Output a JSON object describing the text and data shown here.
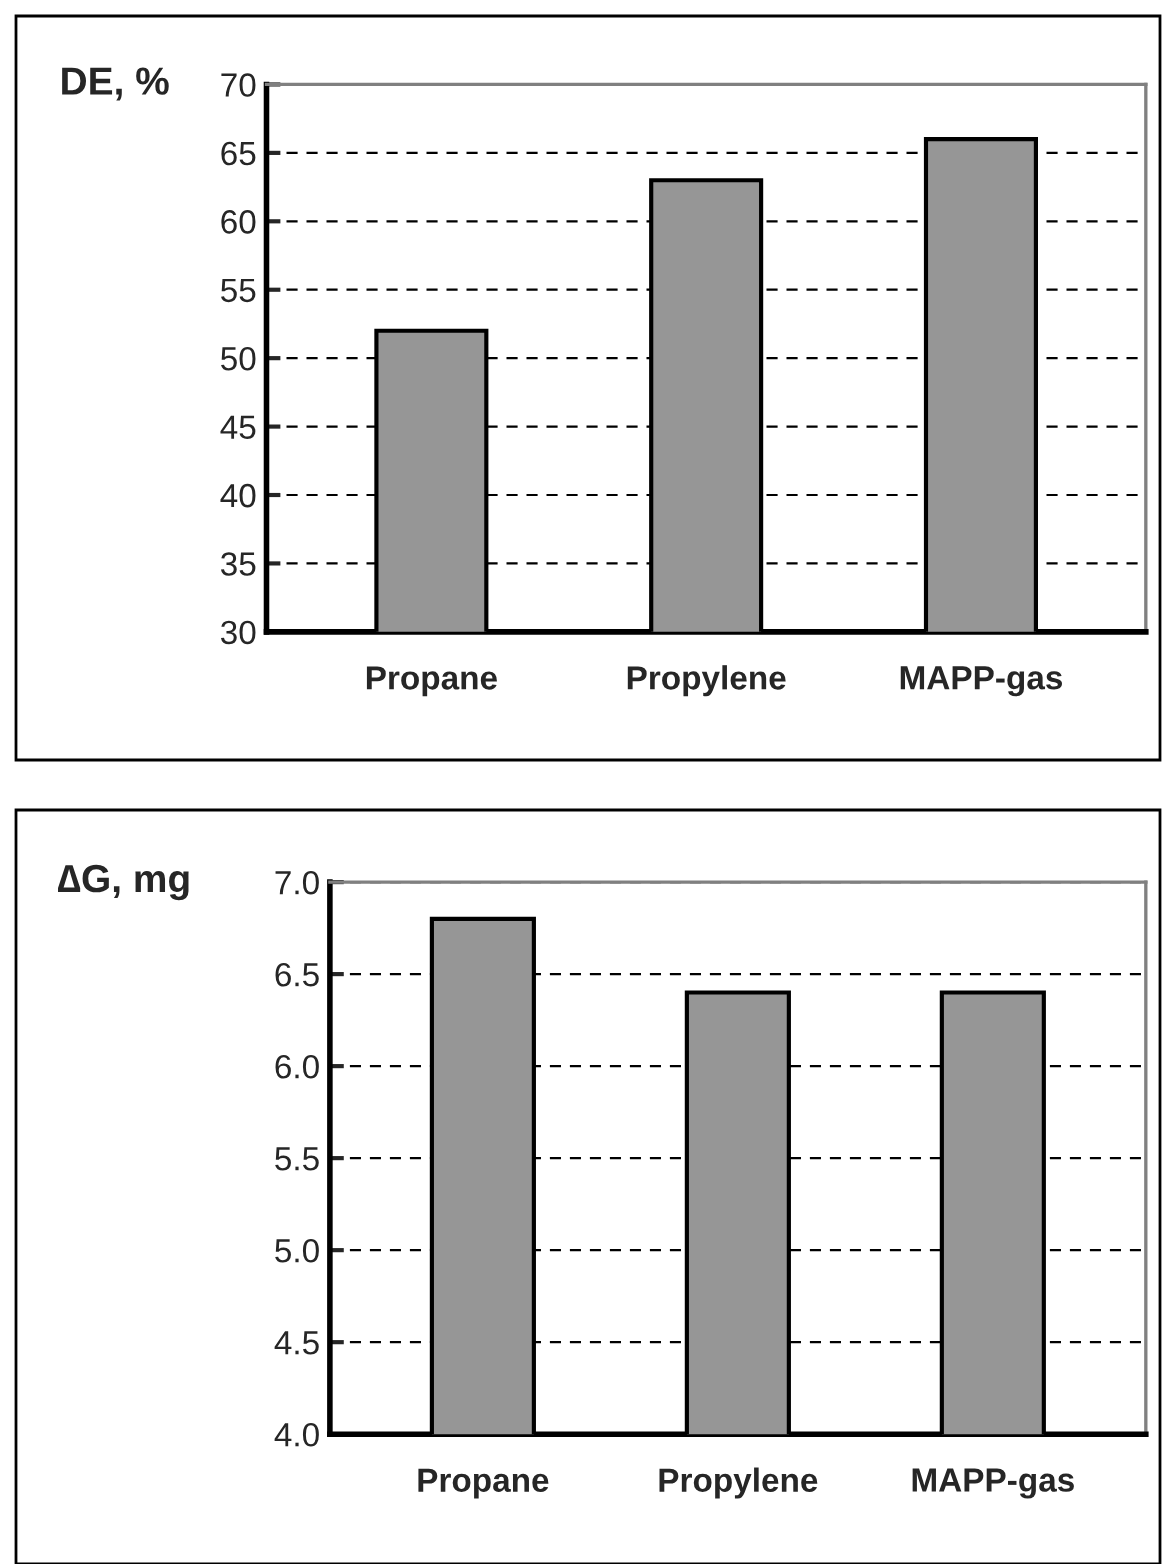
{
  "chart_data": [
    {
      "type": "bar",
      "ylabel": "DE, %",
      "categories": [
        "Propane",
        "Propylene",
        "MAPP-gas"
      ],
      "values": [
        52,
        63,
        66
      ],
      "color": "#969696",
      "ylim": [
        30,
        70
      ],
      "yticks": [
        30,
        35,
        40,
        45,
        50,
        55,
        60,
        65,
        70
      ],
      "grid": "y"
    },
    {
      "type": "bar",
      "ylabel": "∆G, mg",
      "categories": [
        "Propane",
        "Propylene",
        "MAPP-gas"
      ],
      "values": [
        6.8,
        6.4,
        6.4
      ],
      "color": "#969696",
      "ylim": [
        4,
        7
      ],
      "yticks": [
        {
          "value": 4,
          "label": "4.0"
        },
        {
          "value": 4.5,
          "label": "4.5"
        },
        {
          "value": 5,
          "label": "5.0"
        },
        {
          "value": 5.5,
          "label": "5.5"
        },
        {
          "value": 6,
          "label": "6.0"
        },
        {
          "value": 6.5,
          "label": "6.5"
        },
        {
          "value": 7,
          "label": "7.0"
        }
      ],
      "grid": "y"
    }
  ]
}
